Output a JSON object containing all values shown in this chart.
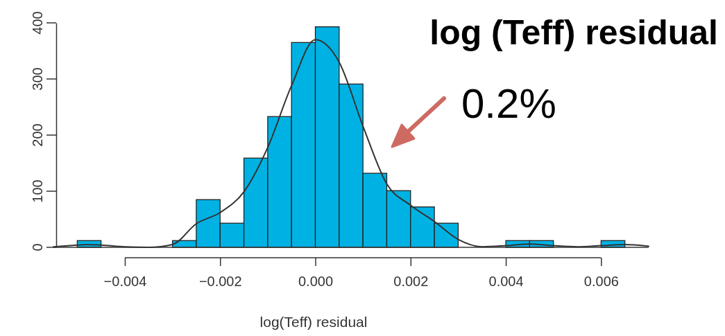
{
  "chart_data": {
    "type": "histogram",
    "title": "log (Teff) residual",
    "xlabel": "log(Teff) residual",
    "bins": [
      -0.005,
      -0.0045,
      -0.004,
      -0.0035,
      -0.003,
      -0.0025,
      -0.002,
      -0.0015,
      -0.001,
      -0.0005,
      0,
      0.0005,
      0.001,
      0.0015,
      0.002,
      0.0025,
      0.003,
      0.0035,
      0.004,
      0.0045,
      0.005,
      0.0055,
      0.006,
      0.0065
    ],
    "values": [
      12,
      0,
      0,
      0,
      12,
      85,
      43,
      159,
      233,
      365,
      393,
      291,
      132,
      101,
      72,
      43,
      0,
      0,
      12,
      12,
      0,
      0,
      12
    ],
    "color": "#00b2e3",
    "series": [
      {
        "type": "line",
        "color": "#333333",
        "x": [
          -0.0055,
          -0.005,
          -0.0048,
          -0.0045,
          -0.004,
          -0.0035,
          -0.003,
          -0.0025,
          -0.002,
          -0.0015,
          -0.001,
          -0.0005,
          0,
          0.0005,
          0.001,
          0.0015,
          0.002,
          0.0025,
          0.003,
          0.0035,
          0.004,
          0.0045,
          0.005,
          0.0055,
          0.006,
          0.0065,
          0.007
        ],
        "values": [
          1,
          4,
          5,
          4,
          1,
          0,
          5,
          42,
          62,
          99,
          178,
          288,
          370,
          330,
          216,
          113,
          75,
          46,
          14,
          1,
          3,
          6,
          3,
          1,
          3,
          5,
          2
        ]
      }
    ],
    "annotations": [
      "0.2%"
    ],
    "xlim": [
      -0.0055,
      0.007
    ],
    "ylim": [
      0,
      400
    ],
    "xticks": [
      {
        "value": -0.004,
        "label": "−0.004"
      },
      {
        "value": -0.002,
        "label": "−0.002"
      },
      {
        "value": 0,
        "label": "0.000"
      },
      {
        "value": 0.002,
        "label": "0.002"
      },
      {
        "value": 0.004,
        "label": "0.004"
      },
      {
        "value": 0.006,
        "label": "0.006"
      }
    ],
    "yticks": [
      0,
      100,
      200,
      300,
      400
    ]
  }
}
